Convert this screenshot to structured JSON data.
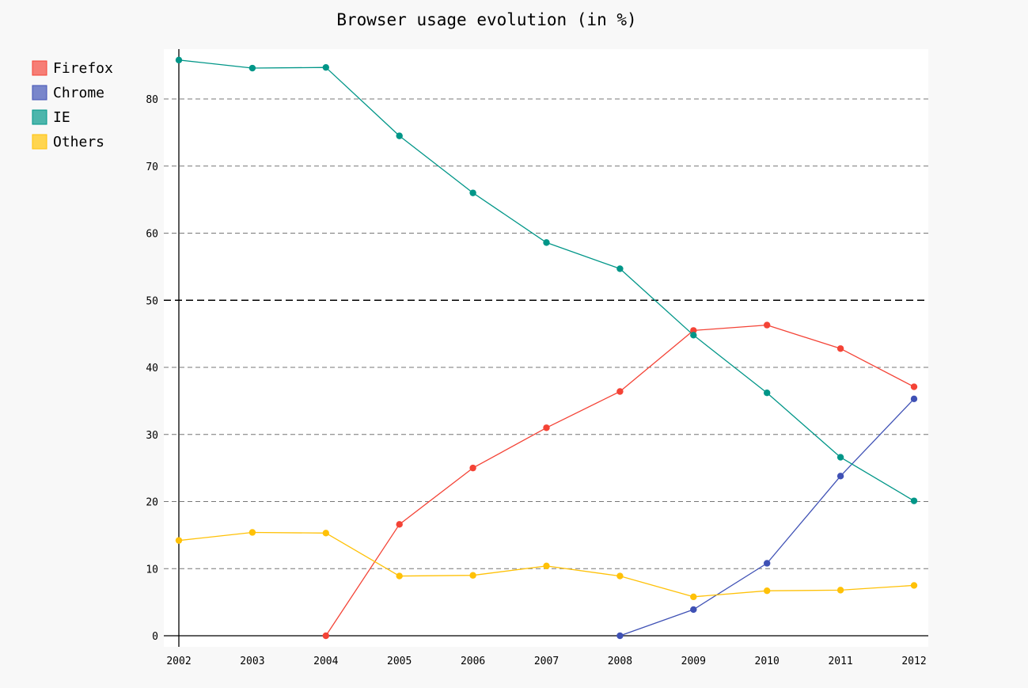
{
  "chart_data": {
    "type": "line",
    "title": "Browser usage evolution (in %)",
    "xlabel": "",
    "ylabel": "",
    "x": [
      "2002",
      "2003",
      "2004",
      "2005",
      "2006",
      "2007",
      "2008",
      "2009",
      "2010",
      "2011",
      "2012"
    ],
    "ylim": [
      -1.5,
      87.5
    ],
    "yticks": [
      0,
      10,
      20,
      30,
      40,
      50,
      60,
      70,
      80
    ],
    "y_major_tick": 50,
    "grid": true,
    "legend_position": "top-left",
    "series": [
      {
        "name": "Firefox",
        "color": "#F44336",
        "legend_color": "#F67E76",
        "values": [
          null,
          null,
          0,
          16.6,
          25,
          31,
          36.4,
          45.5,
          46.3,
          42.8,
          37.1
        ]
      },
      {
        "name": "Chrome",
        "color": "#3F51B5",
        "legend_color": "#7986CB",
        "values": [
          null,
          null,
          null,
          null,
          null,
          null,
          0,
          3.9,
          10.8,
          23.8,
          35.3
        ]
      },
      {
        "name": "IE",
        "color": "#009688",
        "legend_color": "#4DB6AC",
        "values": [
          85.8,
          84.6,
          84.7,
          74.5,
          66,
          58.6,
          54.7,
          44.8,
          36.2,
          26.6,
          20.1
        ]
      },
      {
        "name": "Others",
        "color": "#FFC107",
        "legend_color": "#FFD54F",
        "values": [
          14.2,
          15.4,
          15.3,
          8.9,
          9,
          10.4,
          8.9,
          5.8,
          6.7,
          6.8,
          7.5
        ]
      }
    ]
  }
}
